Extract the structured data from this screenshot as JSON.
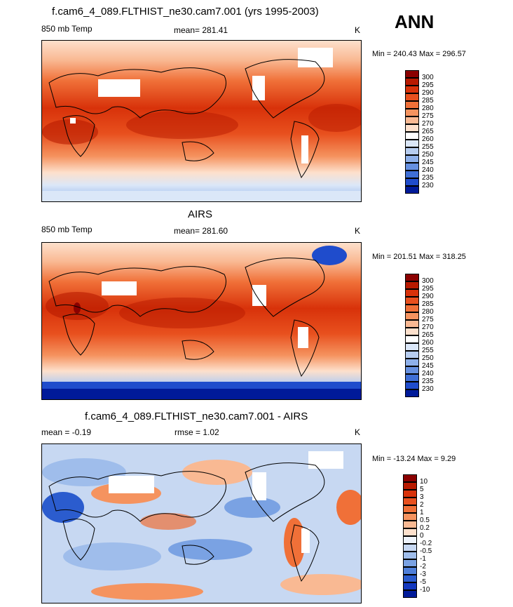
{
  "header": {
    "title": "f.cam6_4_089.FLTHIST_ne30.cam7.001 (yrs 1995-2003)",
    "season": "ANN"
  },
  "panels": [
    {
      "id": "model",
      "title": "",
      "left_label": "850 mb Temp",
      "center_label": "mean= 281.41",
      "right_label": "K",
      "minmax": "Min = 240.43 Max = 296.57",
      "colorbar": [
        "300",
        "295",
        "290",
        "285",
        "280",
        "275",
        "270",
        "265",
        "260",
        "255",
        "250",
        "245",
        "240",
        "235",
        "230"
      ]
    },
    {
      "id": "obs",
      "title": "AIRS",
      "left_label": "850 mb Temp",
      "center_label": "mean= 281.60",
      "right_label": "K",
      "minmax": "Min = 201.51 Max = 318.25",
      "colorbar": [
        "300",
        "295",
        "290",
        "285",
        "280",
        "275",
        "270",
        "265",
        "260",
        "255",
        "250",
        "245",
        "240",
        "235",
        "230"
      ]
    },
    {
      "id": "diff",
      "title": "f.cam6_4_089.FLTHIST_ne30.cam7.001 - AIRS",
      "left_label": "mean =  -0.19",
      "center_label": "rmse =   1.02",
      "right_label": "K",
      "minmax": "Min = -13.24 Max =   9.29",
      "colorbar": [
        "10",
        "5",
        "3",
        "2",
        "1",
        "0.5",
        "0.2",
        "0",
        "-0.2",
        "-0.5",
        "-1",
        "-2",
        "-3",
        "-5",
        "-10"
      ]
    }
  ],
  "colors": {
    "temp_scale": [
      "#8b0000",
      "#b81a00",
      "#d8320a",
      "#e8501e",
      "#f07038",
      "#f5935f",
      "#f9b993",
      "#fde0cc",
      "#ffffff",
      "#dbe7f8",
      "#b7cdf0",
      "#8eb0ea",
      "#6690e0",
      "#3f6fd6",
      "#1f4ccc",
      "#001a99"
    ],
    "diff_scale": [
      "#8b0000",
      "#b81a00",
      "#d8320a",
      "#e8501e",
      "#f07038",
      "#f5935f",
      "#f9b993",
      "#fde0cc",
      "#eef3fb",
      "#c7d8f2",
      "#9fbdeb",
      "#7aa2e3",
      "#4f7fd9",
      "#2b5cce",
      "#1338bf",
      "#001a99"
    ]
  }
}
